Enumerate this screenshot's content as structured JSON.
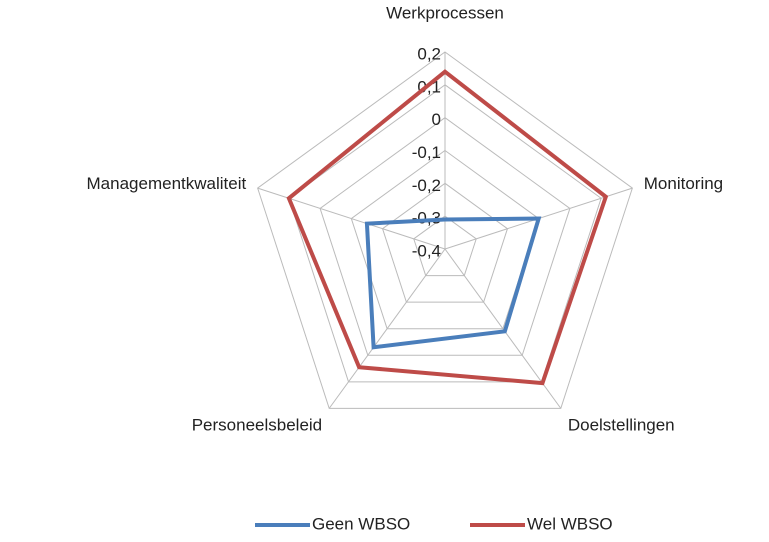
{
  "chart_data": {
    "type": "radar",
    "categories": [
      "Werkprocessen",
      "Monitoring",
      "Doelstellingen",
      "Personeelsbeleid",
      "Managementkwaliteit"
    ],
    "series": [
      {
        "name": "Geen WBSO",
        "color": "#4a7ebb",
        "values": [
          -0.31,
          -0.1,
          -0.09,
          -0.03,
          -0.15
        ]
      },
      {
        "name": "Wel WBSO",
        "color": "#be4b48",
        "values": [
          0.14,
          0.115,
          0.105,
          0.045,
          0.1
        ]
      }
    ],
    "ylim": [
      -0.4,
      0.2
    ],
    "yticks": [
      {
        "value": -0.4,
        "label": "-0,4"
      },
      {
        "value": -0.3,
        "label": "-0,3"
      },
      {
        "value": -0.2,
        "label": "-0,2"
      },
      {
        "value": -0.1,
        "label": "-0,1"
      },
      0,
      {
        "value": 0.1,
        "label": "0,1"
      },
      {
        "value": 0.2,
        "label": "0,2"
      }
    ],
    "grid": true,
    "legend": "bottom"
  }
}
